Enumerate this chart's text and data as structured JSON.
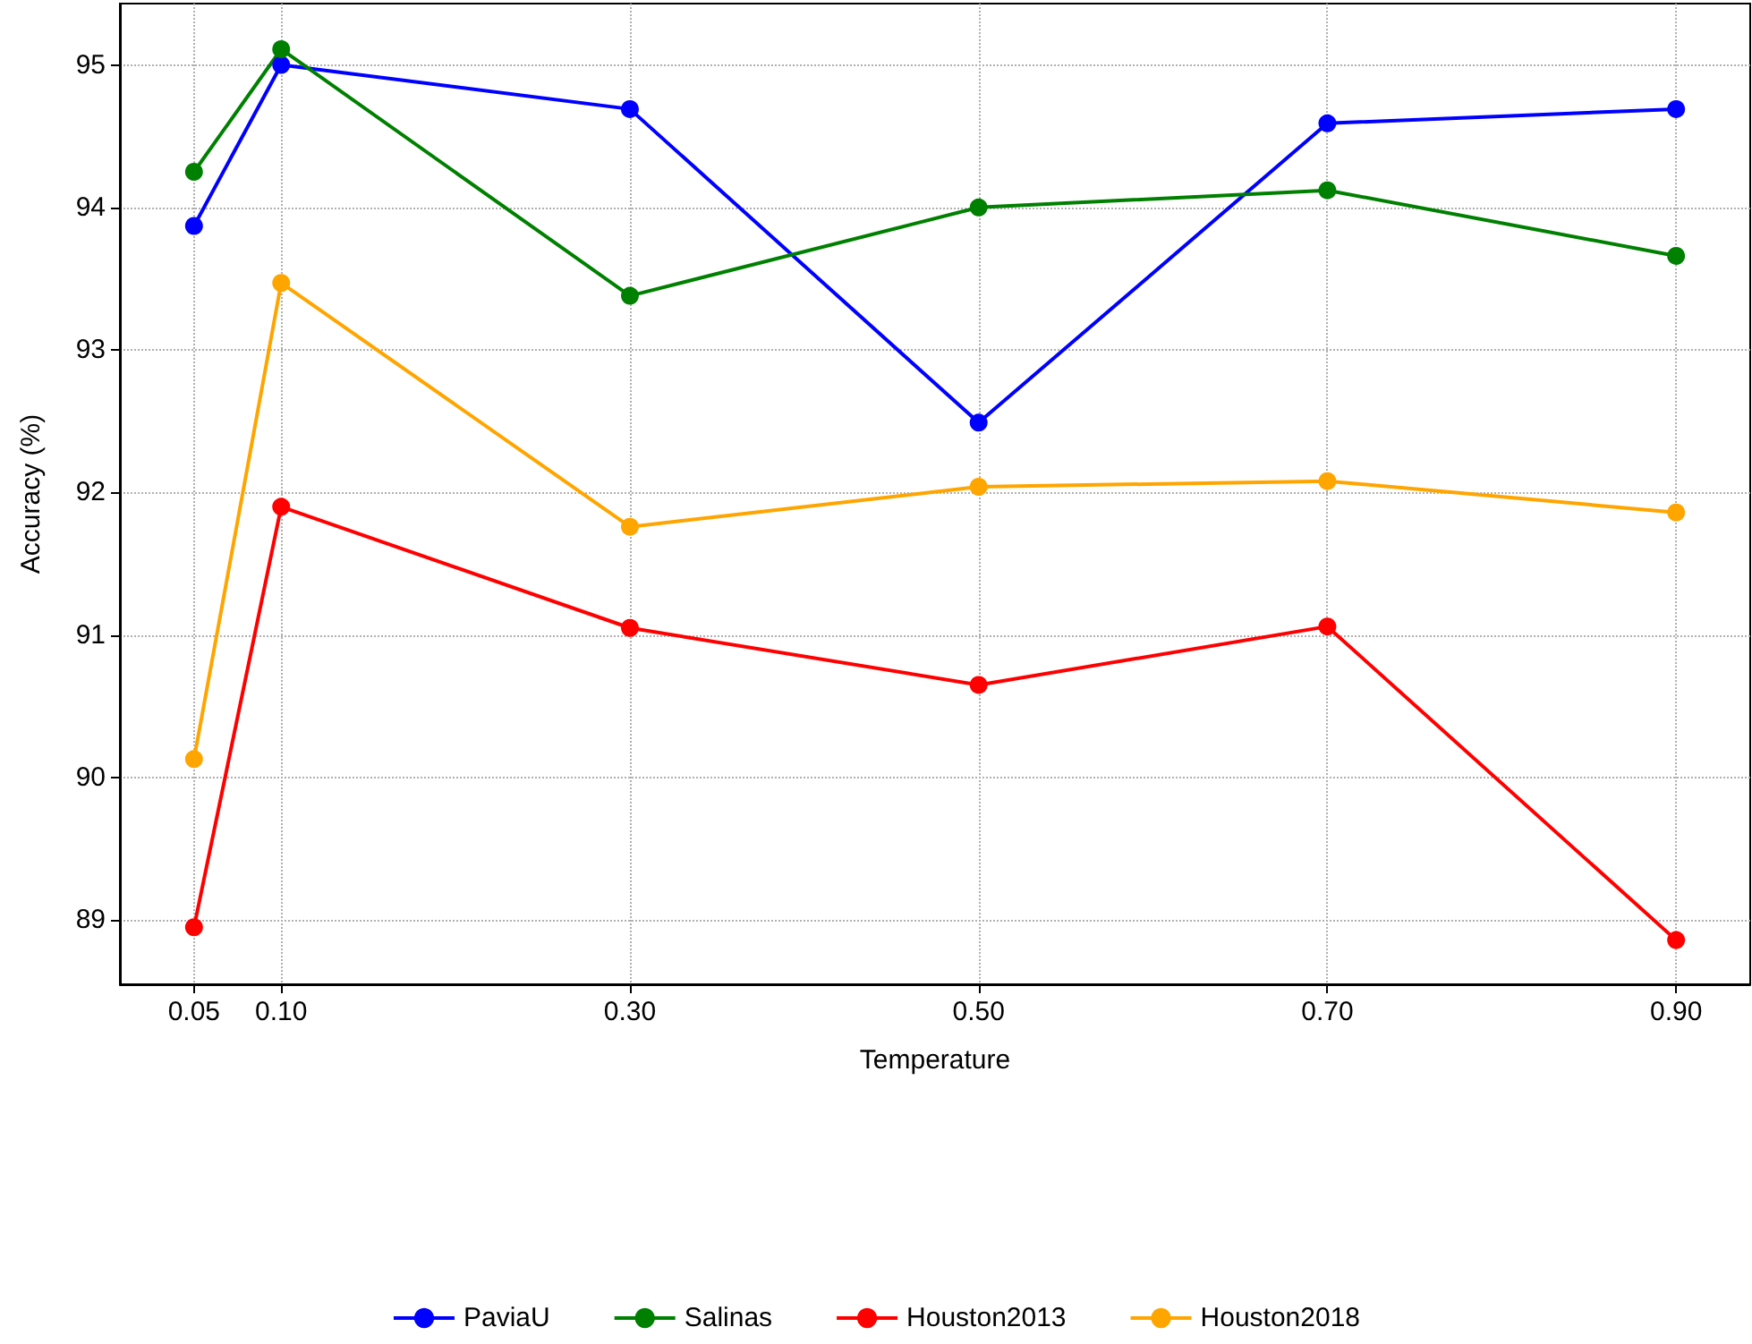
{
  "chart_data": {
    "type": "line",
    "xlabel": "Temperature",
    "ylabel": "Accuracy (%)",
    "x": [
      0.05,
      0.1,
      0.3,
      0.5,
      0.7,
      0.9
    ],
    "series": [
      {
        "name": "PaviaU",
        "color": "#0000ff",
        "values": [
          93.87,
          95.0,
          94.69,
          92.49,
          94.59,
          94.69
        ]
      },
      {
        "name": "Salinas",
        "color": "#008000",
        "values": [
          94.25,
          95.11,
          93.38,
          94.0,
          94.12,
          93.66
        ]
      },
      {
        "name": "Houston2013",
        "color": "#ff0000",
        "values": [
          88.95,
          91.9,
          91.05,
          90.65,
          91.06,
          88.86
        ]
      },
      {
        "name": "Houston2018",
        "color": "#ffa500",
        "values": [
          90.13,
          93.47,
          91.76,
          92.04,
          92.08,
          91.86
        ]
      }
    ],
    "xlim": [
      0.0075,
      0.9425
    ],
    "ylim": [
      88.55,
      95.43
    ],
    "xticks": [
      0.05,
      {
        "value": 0.1,
        "label": "0.10"
      },
      {
        "value": 0.3,
        "label": "0.30"
      },
      {
        "value": 0.5,
        "label": "0.50"
      },
      {
        "value": 0.7,
        "label": "0.70"
      },
      {
        "value": 0.9,
        "label": "0.90"
      }
    ],
    "yticks": [
      89,
      90,
      91,
      92,
      93,
      94,
      95
    ],
    "grid": true,
    "legend": "bottom",
    "marker": "circle",
    "line_style": "solid"
  }
}
